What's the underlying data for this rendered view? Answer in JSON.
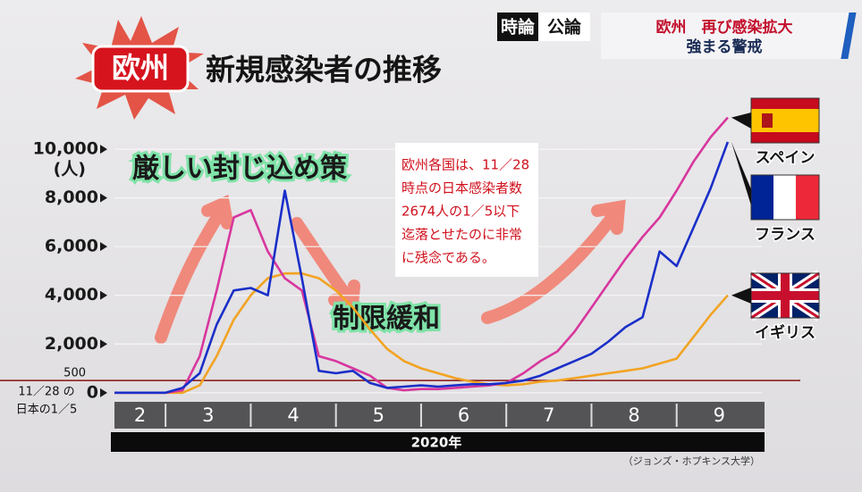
{
  "header": {
    "program": [
      "時論",
      "公論"
    ],
    "headline": [
      "欧州　再び感染拡大",
      "強まる警戒"
    ]
  },
  "chart_data": {
    "type": "line",
    "badge": "欧州",
    "title": "新規感染者の推移",
    "unit": "(人)",
    "x": [
      2.4,
      2.6,
      2.8,
      3.0,
      3.2,
      3.4,
      3.6,
      3.8,
      4.0,
      4.2,
      4.4,
      4.6,
      4.8,
      5.0,
      5.2,
      5.4,
      5.6,
      5.8,
      6.0,
      6.2,
      6.4,
      6.6,
      6.8,
      7.0,
      7.2,
      7.4,
      7.6,
      7.8,
      8.0,
      8.2,
      8.4,
      8.6,
      8.8,
      9.0,
      9.2,
      9.4,
      9.6
    ],
    "xlim": [
      2.4,
      10
    ],
    "xticks": [
      2,
      3,
      4,
      5,
      6,
      7,
      8,
      9
    ],
    "xlabel": "2020年",
    "ylim": [
      -300,
      11800
    ],
    "yticks": [
      0,
      {
        "value": 2000,
        "label": "2,000"
      },
      {
        "value": 4000,
        "label": "4,000"
      },
      {
        "value": 6000,
        "label": "6,000"
      },
      {
        "value": 8000,
        "label": "8,000"
      },
      {
        "value": 10000,
        "label": "10,000"
      }
    ],
    "grid": true,
    "reference_line": {
      "value": 500,
      "note": [
        "11／28 の",
        "日本の1／5"
      ],
      "color": "#8a1010"
    },
    "series": [
      {
        "name": "スペイン",
        "color": "#d8369e",
        "values": [
          0,
          0,
          0,
          0,
          100,
          1500,
          4200,
          7200,
          7500,
          5800,
          4700,
          4200,
          1500,
          1300,
          1000,
          700,
          200,
          100,
          150,
          150,
          200,
          250,
          300,
          400,
          800,
          1300,
          1700,
          2500,
          3500,
          4500,
          5500,
          6400,
          7200,
          8300,
          9500,
          10500,
          11300
        ]
      },
      {
        "name": "フランス",
        "color": "#1a2fc8",
        "values": [
          0,
          0,
          0,
          0,
          200,
          800,
          2800,
          4200,
          4300,
          4000,
          8300,
          4700,
          900,
          800,
          900,
          400,
          200,
          250,
          300,
          250,
          300,
          350,
          350,
          400,
          500,
          700,
          1000,
          1300,
          1600,
          2100,
          2700,
          3100,
          5800,
          5200,
          6800,
          8400,
          10300
        ]
      },
      {
        "name": "イギリス",
        "color": "#f2a322",
        "values": [
          0,
          0,
          0,
          0,
          0,
          300,
          1500,
          3000,
          4000,
          4700,
          4900,
          4900,
          4700,
          4200,
          3500,
          2600,
          1800,
          1300,
          1000,
          800,
          600,
          450,
          350,
          300,
          350,
          450,
          500,
          600,
          700,
          800,
          900,
          1000,
          1200,
          1400,
          2300,
          3200,
          4000
        ]
      }
    ],
    "annotations": [
      "厳しい封じ込め策",
      "制限緩和"
    ],
    "note": [
      "欧州各国は、11／28",
      "時点の日本感染者数",
      "2674人の1／5以下",
      "迄落とせたのに非常",
      "に残念である。"
    ],
    "source": "（ジョンズ・ホプキンス大学）"
  }
}
